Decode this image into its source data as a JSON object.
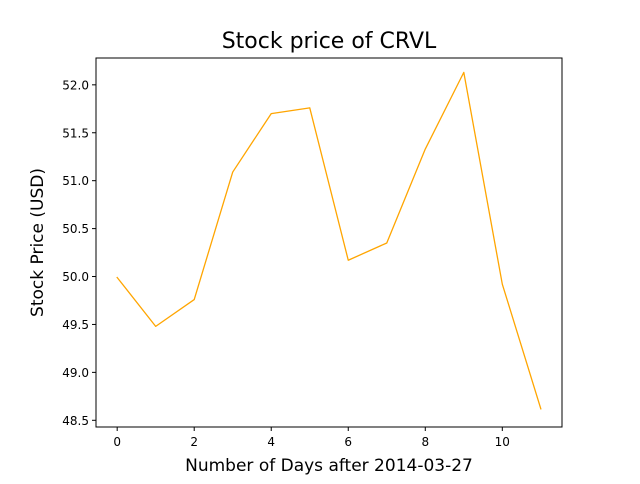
{
  "chart_data": {
    "type": "line",
    "title": "Stock price of CRVL",
    "xlabel": "Number of Days after 2014-03-27",
    "ylabel": "Stock Price (USD)",
    "xlim": [
      -0.55,
      11.55
    ],
    "ylim": [
      48.43,
      52.28
    ],
    "xticks": [
      0,
      2,
      4,
      6,
      8,
      10
    ],
    "yticks": [
      48.5,
      49.0,
      49.5,
      50.0,
      50.5,
      51.0,
      51.5,
      52.0
    ],
    "grid": false,
    "line_color": "#ffa500",
    "series": [
      {
        "x": [
          0,
          1,
          2,
          3,
          4,
          5,
          6,
          7,
          8,
          9,
          10,
          11
        ],
        "values": [
          49.99,
          49.48,
          49.76,
          51.09,
          51.7,
          51.76,
          50.17,
          50.35,
          51.33,
          52.13,
          49.92,
          48.62
        ]
      }
    ]
  }
}
